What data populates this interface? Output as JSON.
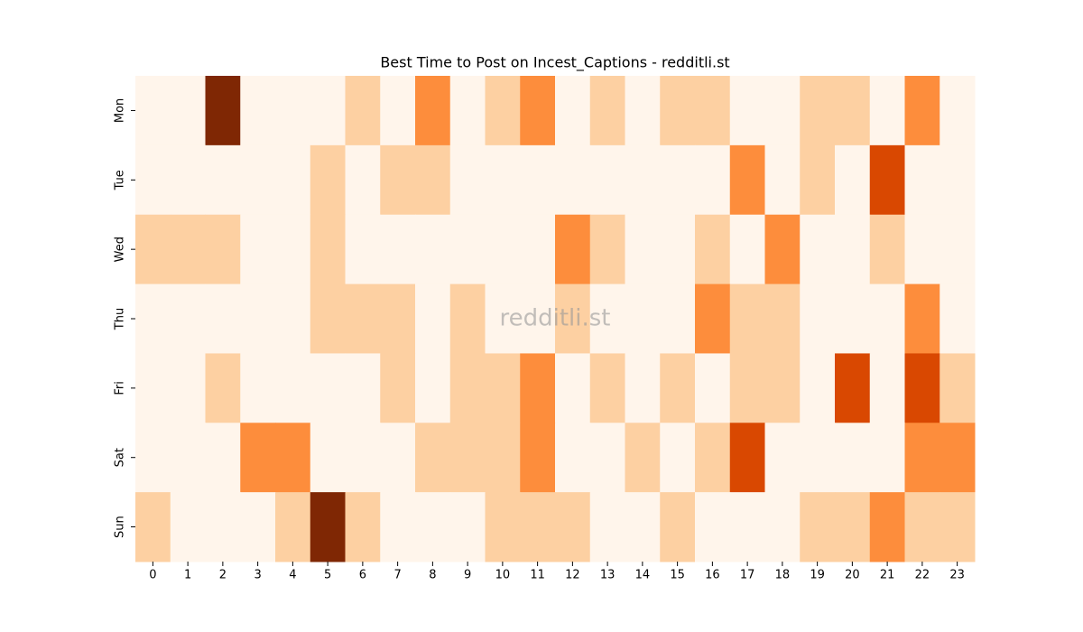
{
  "chart_data": {
    "type": "heatmap",
    "title": "Best Time to Post on Incest_Captions - redditli.st",
    "watermark": "redditli.st",
    "x": [
      "0",
      "1",
      "2",
      "3",
      "4",
      "5",
      "6",
      "7",
      "8",
      "9",
      "10",
      "11",
      "12",
      "13",
      "14",
      "15",
      "16",
      "17",
      "18",
      "19",
      "20",
      "21",
      "22",
      "23"
    ],
    "y": [
      "Mon",
      "Tue",
      "Wed",
      "Thu",
      "Fri",
      "Sat",
      "Sun"
    ],
    "values": [
      [
        0,
        0,
        4,
        0,
        0,
        0,
        1,
        0,
        2,
        0,
        1,
        2,
        0,
        1,
        0,
        1,
        1,
        0,
        0,
        1,
        1,
        0,
        2,
        0
      ],
      [
        0,
        0,
        0,
        0,
        0,
        1,
        0,
        1,
        1,
        0,
        0,
        0,
        0,
        0,
        0,
        0,
        0,
        2,
        0,
        1,
        0,
        3,
        0,
        0
      ],
      [
        1,
        1,
        1,
        0,
        0,
        1,
        0,
        0,
        0,
        0,
        0,
        0,
        2,
        1,
        0,
        0,
        1,
        0,
        2,
        0,
        0,
        1,
        0,
        0
      ],
      [
        0,
        0,
        0,
        0,
        0,
        1,
        1,
        1,
        0,
        1,
        0,
        0,
        1,
        0,
        0,
        0,
        2,
        1,
        1,
        0,
        0,
        0,
        2,
        0
      ],
      [
        0,
        0,
        1,
        0,
        0,
        0,
        0,
        1,
        0,
        1,
        1,
        2,
        0,
        1,
        0,
        1,
        0,
        1,
        1,
        0,
        3,
        0,
        3,
        1
      ],
      [
        0,
        0,
        0,
        2,
        2,
        0,
        0,
        0,
        1,
        1,
        1,
        2,
        0,
        0,
        1,
        0,
        1,
        3,
        0,
        0,
        0,
        0,
        2,
        2
      ],
      [
        1,
        0,
        0,
        0,
        1,
        4,
        1,
        0,
        0,
        0,
        1,
        1,
        1,
        0,
        0,
        1,
        0,
        0,
        0,
        1,
        1,
        2,
        1,
        1
      ]
    ],
    "colormap": [
      "#fff5eb",
      "#fdd0a2",
      "#fd8d3c",
      "#d94801",
      "#7f2704"
    ]
  }
}
